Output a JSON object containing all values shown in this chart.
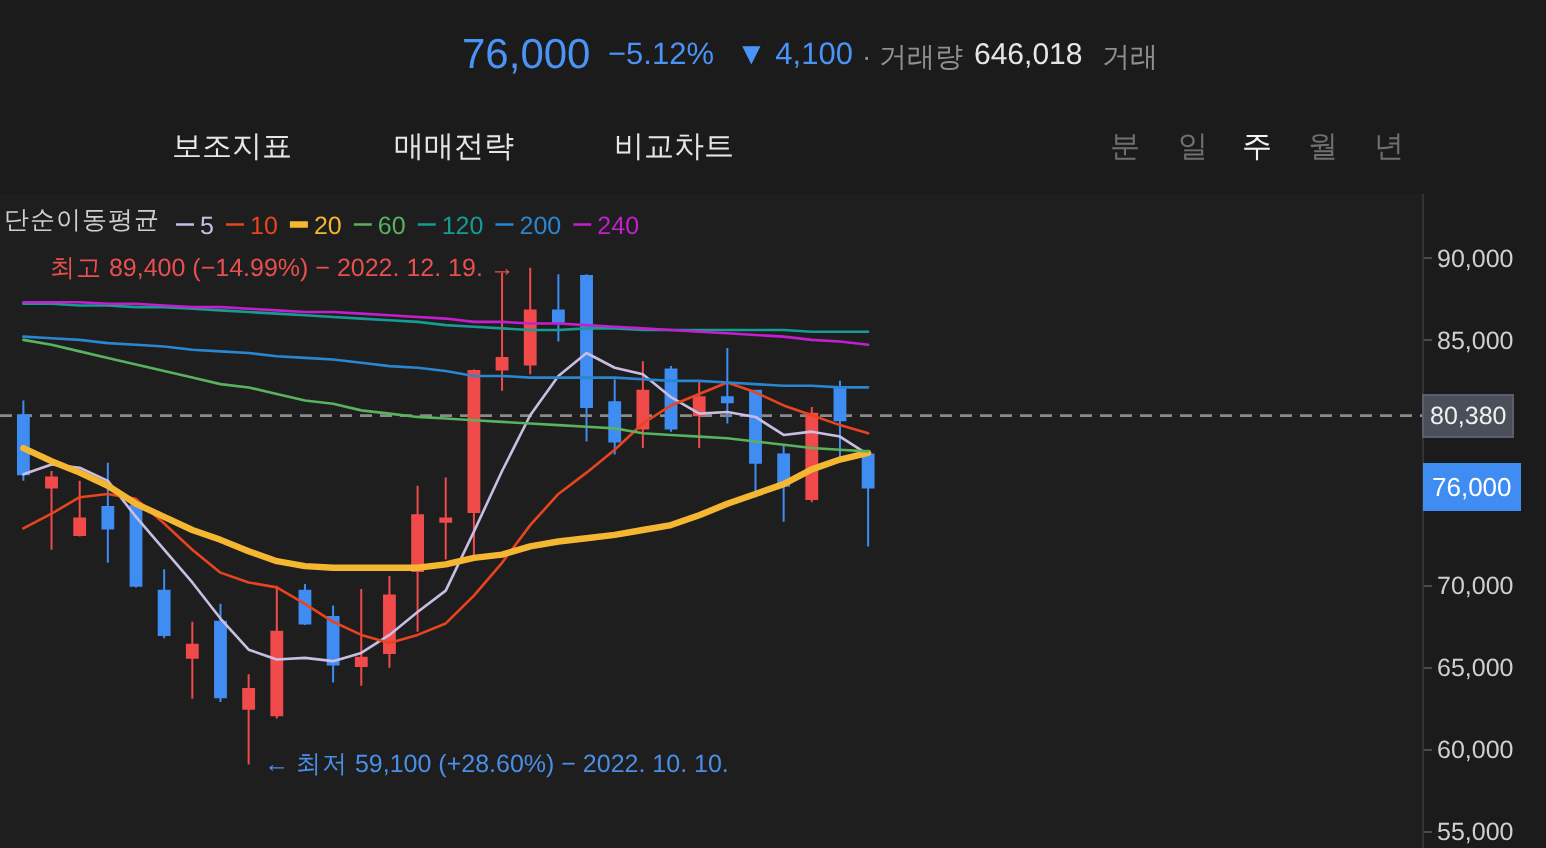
{
  "chart_data": {
    "type": "candlestick",
    "categories": [
      null,
      null,
      null,
      null,
      null,
      null,
      null,
      null,
      null,
      null,
      null,
      null,
      null,
      null,
      null,
      null,
      null,
      null,
      null,
      null,
      null,
      null,
      null,
      null,
      null,
      null,
      null,
      null,
      null,
      null,
      null
    ],
    "ohlc": [
      [
        80400,
        81300,
        76400,
        76800
      ],
      [
        76000,
        77000,
        72200,
        76600
      ],
      [
        73100,
        76400,
        73000,
        74100
      ],
      [
        74800,
        77500,
        71400,
        73500
      ],
      [
        74900,
        75000,
        69900,
        70000
      ],
      [
        69700,
        71000,
        66800,
        67000
      ],
      [
        65600,
        67800,
        63100,
        66400
      ],
      [
        67800,
        68900,
        62900,
        63200
      ],
      [
        62500,
        64600,
        59100,
        63700
      ],
      [
        62100,
        70000,
        61900,
        67200
      ],
      [
        69700,
        70100,
        67600,
        67700
      ],
      [
        68100,
        68800,
        64100,
        65200
      ],
      [
        65100,
        69800,
        63900,
        65600
      ],
      [
        65900,
        70600,
        65000,
        69400
      ],
      [
        70900,
        76100,
        67200,
        74300
      ],
      [
        73900,
        76600,
        71600,
        74100
      ],
      [
        74500,
        83200,
        71800,
        83100
      ],
      [
        83200,
        89100,
        81900,
        83900
      ],
      [
        83500,
        89400,
        82900,
        86800
      ],
      [
        86800,
        89000,
        84900,
        86100
      ],
      [
        88900,
        89000,
        78800,
        80900
      ],
      [
        81200,
        82600,
        78000,
        78800
      ],
      [
        79600,
        83700,
        78400,
        81900
      ],
      [
        83200,
        83400,
        79400,
        79600
      ],
      [
        80400,
        82500,
        78400,
        81500
      ],
      [
        81500,
        84500,
        79900,
        81200
      ],
      [
        81900,
        81900,
        75400,
        77500
      ],
      [
        78000,
        78600,
        73900,
        76100
      ],
      [
        75300,
        80900,
        75100,
        80500
      ],
      [
        82100,
        82500,
        77600,
        80100
      ],
      [
        78000,
        78200,
        72400,
        76000
      ]
    ],
    "colors": [
      "#3f8cf2",
      "#f04a4a",
      "#f04a4a",
      "#3f8cf2",
      "#3f8cf2",
      "#3f8cf2",
      "#f04a4a",
      "#3f8cf2",
      "#f04a4a",
      "#f04a4a",
      "#3f8cf2",
      "#3f8cf2",
      "#f04a4a",
      "#f04a4a",
      "#f04a4a",
      "#f04a4a",
      "#f04a4a",
      "#f04a4a",
      "#f04a4a",
      "#3f8cf2",
      "#3f8cf2",
      "#3f8cf2",
      "#f04a4a",
      "#3f8cf2",
      "#f04a4a",
      "#3f8cf2",
      "#3f8cf2",
      "#3f8cf2",
      "#f04a4a",
      "#3f8cf2",
      "#3f8cf2"
    ],
    "series": [
      {
        "name": "5",
        "type": "line",
        "color": "#c9bde3",
        "values": [
          76800,
          77400,
          77200,
          76400,
          74200,
          72200,
          70200,
          68000,
          66100,
          65500,
          65600,
          65400,
          65900,
          67000,
          68400,
          69700,
          73300,
          77000,
          80400,
          82800,
          84200,
          83300,
          82900,
          81500,
          80500,
          80600,
          80300,
          79200,
          79400,
          79100,
          78000
        ]
      },
      {
        "name": "10",
        "type": "line",
        "color": "#e8441f",
        "values": [
          73500,
          74400,
          75400,
          75600,
          75300,
          73800,
          72200,
          70800,
          70200,
          69900,
          68900,
          67800,
          67000,
          66500,
          67000,
          67700,
          69400,
          71400,
          73700,
          75600,
          76900,
          78300,
          79900,
          81000,
          81700,
          82400,
          81800,
          81000,
          80400,
          79800,
          79300
        ]
      },
      {
        "name": "20",
        "type": "line",
        "color": "#f5b731",
        "values": [
          78400,
          77600,
          76900,
          76100,
          75000,
          74200,
          73400,
          72800,
          72100,
          71500,
          71200,
          71100,
          71100,
          71100,
          71100,
          71300,
          71700,
          71900,
          72400,
          72700,
          72900,
          73100,
          73400,
          73700,
          74300,
          75000,
          75600,
          76200,
          77100,
          77700,
          78100
        ]
      },
      {
        "name": "60",
        "type": "line",
        "color": "#59b25e",
        "values": [
          85000,
          84700,
          84300,
          83900,
          83500,
          83100,
          82700,
          82300,
          82100,
          81700,
          81300,
          81100,
          80700,
          80500,
          80300,
          80200,
          80100,
          80000,
          79900,
          79800,
          79700,
          79600,
          79300,
          79200,
          79100,
          79000,
          78800,
          78600,
          78400,
          78300,
          78200
        ]
      },
      {
        "name": "120",
        "type": "line",
        "color": "#169c93",
        "values": [
          87200,
          87200,
          87100,
          87100,
          87000,
          87000,
          86900,
          86800,
          86700,
          86600,
          86500,
          86400,
          86300,
          86200,
          86100,
          85900,
          85800,
          85700,
          85600,
          85600,
          85700,
          85700,
          85600,
          85600,
          85600,
          85600,
          85600,
          85600,
          85500,
          85500,
          85500
        ]
      },
      {
        "name": "200",
        "type": "line",
        "color": "#2a86d1",
        "values": [
          85200,
          85100,
          85000,
          84800,
          84700,
          84600,
          84400,
          84300,
          84200,
          84000,
          83900,
          83800,
          83600,
          83400,
          83300,
          83100,
          82800,
          82800,
          82700,
          82700,
          82700,
          82700,
          82600,
          82500,
          82500,
          82400,
          82300,
          82200,
          82200,
          82100,
          82100
        ]
      },
      {
        "name": "240",
        "type": "line",
        "color": "#c41fcf",
        "values": [
          87300,
          87300,
          87300,
          87200,
          87200,
          87100,
          87000,
          87000,
          86900,
          86800,
          86700,
          86700,
          86600,
          86500,
          86400,
          86300,
          86100,
          86100,
          86000,
          86000,
          85900,
          85800,
          85700,
          85600,
          85500,
          85400,
          85300,
          85200,
          85000,
          84900,
          84700
        ]
      }
    ],
    "legend_title": "단순이동평균",
    "legend": "top left",
    "ylim": [
      54000,
      93900
    ],
    "yticks": [
      {
        "value": 55000,
        "label": "55,000"
      },
      {
        "value": 60000,
        "label": "60,000"
      },
      {
        "value": 65000,
        "label": "65,000"
      },
      {
        "value": 70000,
        "label": "70,000"
      },
      {
        "value": 85000,
        "label": "85,000"
      },
      {
        "value": 90000,
        "label": "90,000"
      }
    ],
    "tick_labels": "y",
    "ref_lines": [
      {
        "axis": "y",
        "value": 80380,
        "label": "80,380",
        "color": "#8a8a8a",
        "line_style": "dashed"
      }
    ],
    "annotations": [
      "최고 89,400 (−14.99%) − 2022. 12. 19. →",
      "← 최저 59,100 (+28.60%) − 2022. 10. 10.",
      "76,000",
      "76,000",
      "−5.12%",
      "▼ 4,100",
      "· 거래량",
      "646,018",
      "거래",
      "보조지표",
      "매매전략",
      "비교차트",
      "분",
      "일",
      "주",
      "월",
      "년"
    ]
  }
}
